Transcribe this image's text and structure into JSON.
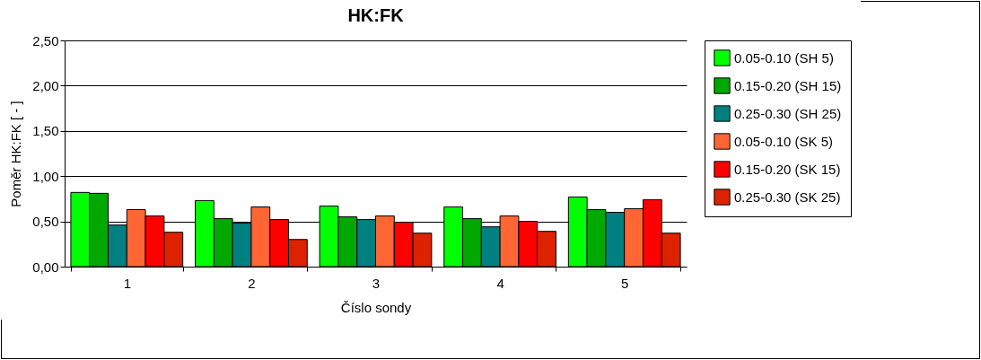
{
  "chart_data": {
    "type": "bar",
    "title": "HK:FK",
    "xlabel": "Číslo sondy",
    "ylabel": "Poměr HK:FK [ - ]",
    "categories": [
      "1",
      "2",
      "3",
      "4",
      "5"
    ],
    "series": [
      {
        "name": "0.05-0.10 (SH 5)",
        "color": "#00ff00",
        "values": [
          0.82,
          0.73,
          0.67,
          0.66,
          0.77
        ]
      },
      {
        "name": "0.15-0.20 (SH 15)",
        "color": "#00a800",
        "values": [
          0.81,
          0.53,
          0.55,
          0.53,
          0.63
        ]
      },
      {
        "name": "0.25-0.30 (SH 25)",
        "color": "#008080",
        "values": [
          0.46,
          0.48,
          0.52,
          0.44,
          0.6
        ]
      },
      {
        "name": "0.05-0.10 (SK 5)",
        "color": "#ff6633",
        "values": [
          0.63,
          0.66,
          0.56,
          0.56,
          0.64
        ]
      },
      {
        "name": "0.15-0.20 (SK 15)",
        "color": "#ff0000",
        "values": [
          0.56,
          0.52,
          0.49,
          0.5,
          0.74
        ]
      },
      {
        "name": "0.25-0.30 (SK 25)",
        "color": "#dd2200",
        "values": [
          0.38,
          0.3,
          0.37,
          0.39,
          0.37
        ]
      }
    ],
    "ylim": [
      0,
      2.5
    ],
    "yticks": [
      {
        "value": 0,
        "label": "0,00"
      },
      {
        "value": 0.5,
        "label": "0,50"
      },
      {
        "value": 1,
        "label": "1,00"
      },
      {
        "value": 1.5,
        "label": "1,50"
      },
      {
        "value": 2,
        "label": "2,00"
      },
      {
        "value": 2.5,
        "label": "2,50"
      }
    ],
    "grid": "y",
    "legend": "right"
  }
}
